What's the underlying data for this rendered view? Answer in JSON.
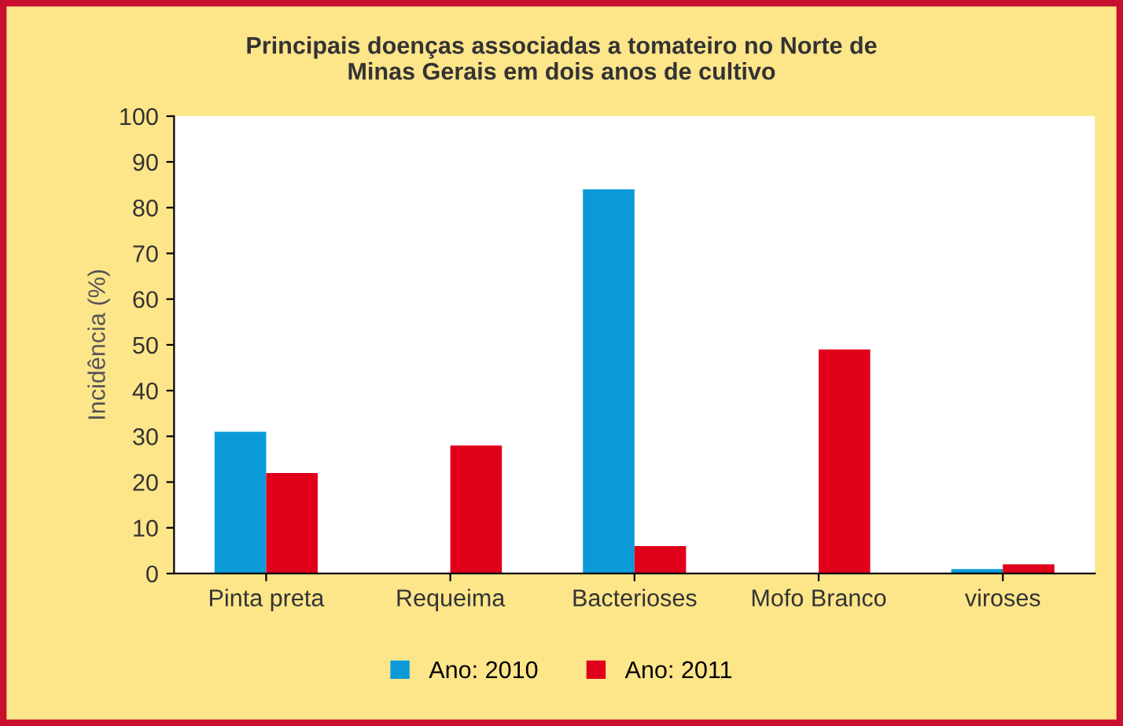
{
  "chart_data": {
    "type": "bar",
    "title": "Principais doenças associadas a tomateiro no Norte de\nMinas Gerais em dois anos de cultivo",
    "ylabel": "Incidência (%)",
    "categories": [
      "Pinta preta",
      "Requeima",
      "Bacterioses",
      "Mofo Branco",
      "viroses"
    ],
    "series": [
      {
        "name": "Ano: 2010",
        "color": "#0b9ad8",
        "values": [
          31,
          0,
          84,
          0,
          1
        ]
      },
      {
        "name": "Ano: 2011",
        "color": "#e0001a",
        "values": [
          22,
          28,
          6,
          49,
          2
        ]
      }
    ],
    "ylim": [
      0,
      100
    ],
    "yticks": [
      0,
      10,
      20,
      30,
      40,
      50,
      60,
      70,
      80,
      90,
      100
    ],
    "grid": false,
    "legend": "bottom"
  }
}
